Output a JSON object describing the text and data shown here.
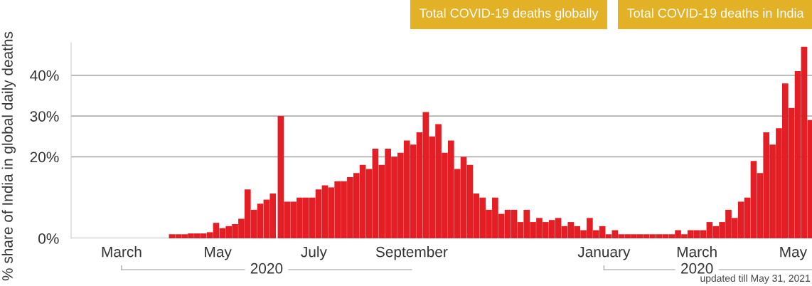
{
  "chart_data": {
    "type": "bar",
    "ylabel": "% share of India in global daily deaths",
    "x": [
      "2020-04-02",
      "2020-04-06",
      "2020-04-10",
      "2020-04-14",
      "2020-04-18",
      "2020-04-22",
      "2020-04-26",
      "2020-04-30",
      "2020-05-04",
      "2020-05-08",
      "2020-05-12",
      "2020-05-16",
      "2020-05-20",
      "2020-05-24",
      "2020-05-28",
      "2020-06-01",
      "2020-06-05",
      "2020-06-10",
      "2020-06-14",
      "2020-06-18",
      "2020-06-22",
      "2020-06-26",
      "2020-06-30",
      "2020-07-04",
      "2020-07-08",
      "2020-07-12",
      "2020-07-16",
      "2020-07-20",
      "2020-07-24",
      "2020-07-28",
      "2020-08-01",
      "2020-08-05",
      "2020-08-09",
      "2020-08-13",
      "2020-08-17",
      "2020-08-21",
      "2020-08-25",
      "2020-08-29",
      "2020-09-02",
      "2020-09-06",
      "2020-09-10",
      "2020-09-14",
      "2020-09-18",
      "2020-09-22",
      "2020-09-26",
      "2020-09-30",
      "2020-10-04",
      "2020-10-08",
      "2020-10-12",
      "2020-10-16",
      "2020-10-20",
      "2020-10-24",
      "2020-10-28",
      "2020-11-01",
      "2020-11-05",
      "2020-11-09",
      "2020-11-13",
      "2020-11-17",
      "2020-11-21",
      "2020-11-25",
      "2020-11-29",
      "2020-12-03",
      "2020-12-07",
      "2020-12-11",
      "2020-12-15",
      "2020-12-19",
      "2020-12-23",
      "2020-12-27",
      "2020-12-31",
      "2021-01-04",
      "2021-01-08",
      "2021-01-12",
      "2021-01-16",
      "2021-01-20",
      "2021-01-24",
      "2021-01-28",
      "2021-02-01",
      "2021-02-05",
      "2021-02-09",
      "2021-02-13",
      "2021-02-17",
      "2021-02-21",
      "2021-02-25",
      "2021-03-01",
      "2021-03-05",
      "2021-03-09",
      "2021-03-13",
      "2021-03-17",
      "2021-03-21",
      "2021-03-25",
      "2021-03-29",
      "2021-04-02",
      "2021-04-06",
      "2021-04-10",
      "2021-04-14",
      "2021-04-18",
      "2021-04-22",
      "2021-04-26",
      "2021-04-30",
      "2021-05-04",
      "2021-05-08",
      "2021-05-12"
    ],
    "values": [
      1,
      1,
      1,
      1.2,
      1.2,
      1.2,
      1.5,
      3.8,
      2.5,
      3,
      3.5,
      4.8,
      12,
      7,
      8.5,
      9.5,
      11,
      30,
      9,
      9,
      10,
      10,
      10,
      12,
      13,
      12.5,
      14,
      14,
      15,
      16,
      18,
      17,
      22,
      18,
      22,
      20,
      21,
      24,
      23,
      26,
      31,
      25,
      28,
      21,
      24,
      17,
      20,
      18,
      11,
      10,
      7,
      10,
      6,
      7,
      7,
      4,
      7,
      4,
      5,
      4,
      4.5,
      5,
      3,
      4,
      3,
      2,
      5,
      2,
      3,
      1,
      2,
      1,
      1,
      1,
      1,
      1,
      1,
      1,
      1,
      1,
      2,
      1,
      2,
      2,
      2,
      4,
      3,
      4,
      7,
      5,
      9,
      10,
      19,
      16,
      26,
      23,
      27,
      38,
      32,
      41,
      47,
      29
    ],
    "color": "#e31e24",
    "xlim": [
      "2020-01-29",
      "2021-05-13"
    ],
    "xticks": [
      {
        "value": "2020-03-01",
        "label": "March"
      },
      {
        "value": "2020-05-01",
        "label": "May"
      },
      {
        "value": "2020-07-01",
        "label": "July"
      },
      {
        "value": "2020-09-01",
        "label": "September"
      },
      {
        "value": "2021-01-01",
        "label": "January"
      },
      {
        "value": "2021-03-01",
        "label": "March"
      },
      {
        "value": "2021-05-01",
        "label": "May"
      }
    ],
    "ylim": [
      0,
      48
    ],
    "yticks": [
      {
        "value": 0,
        "label": "0%"
      },
      {
        "value": 20,
        "label": "20%"
      },
      {
        "value": 30,
        "label": "30%"
      },
      {
        "value": 40,
        "label": "40%"
      }
    ],
    "grid": "y",
    "annotations": [
      "Total COVID-19 deaths globally",
      "Total COVID-19 deaths in India",
      "2020",
      "2020",
      "updated till May 31, 2021"
    ]
  }
}
